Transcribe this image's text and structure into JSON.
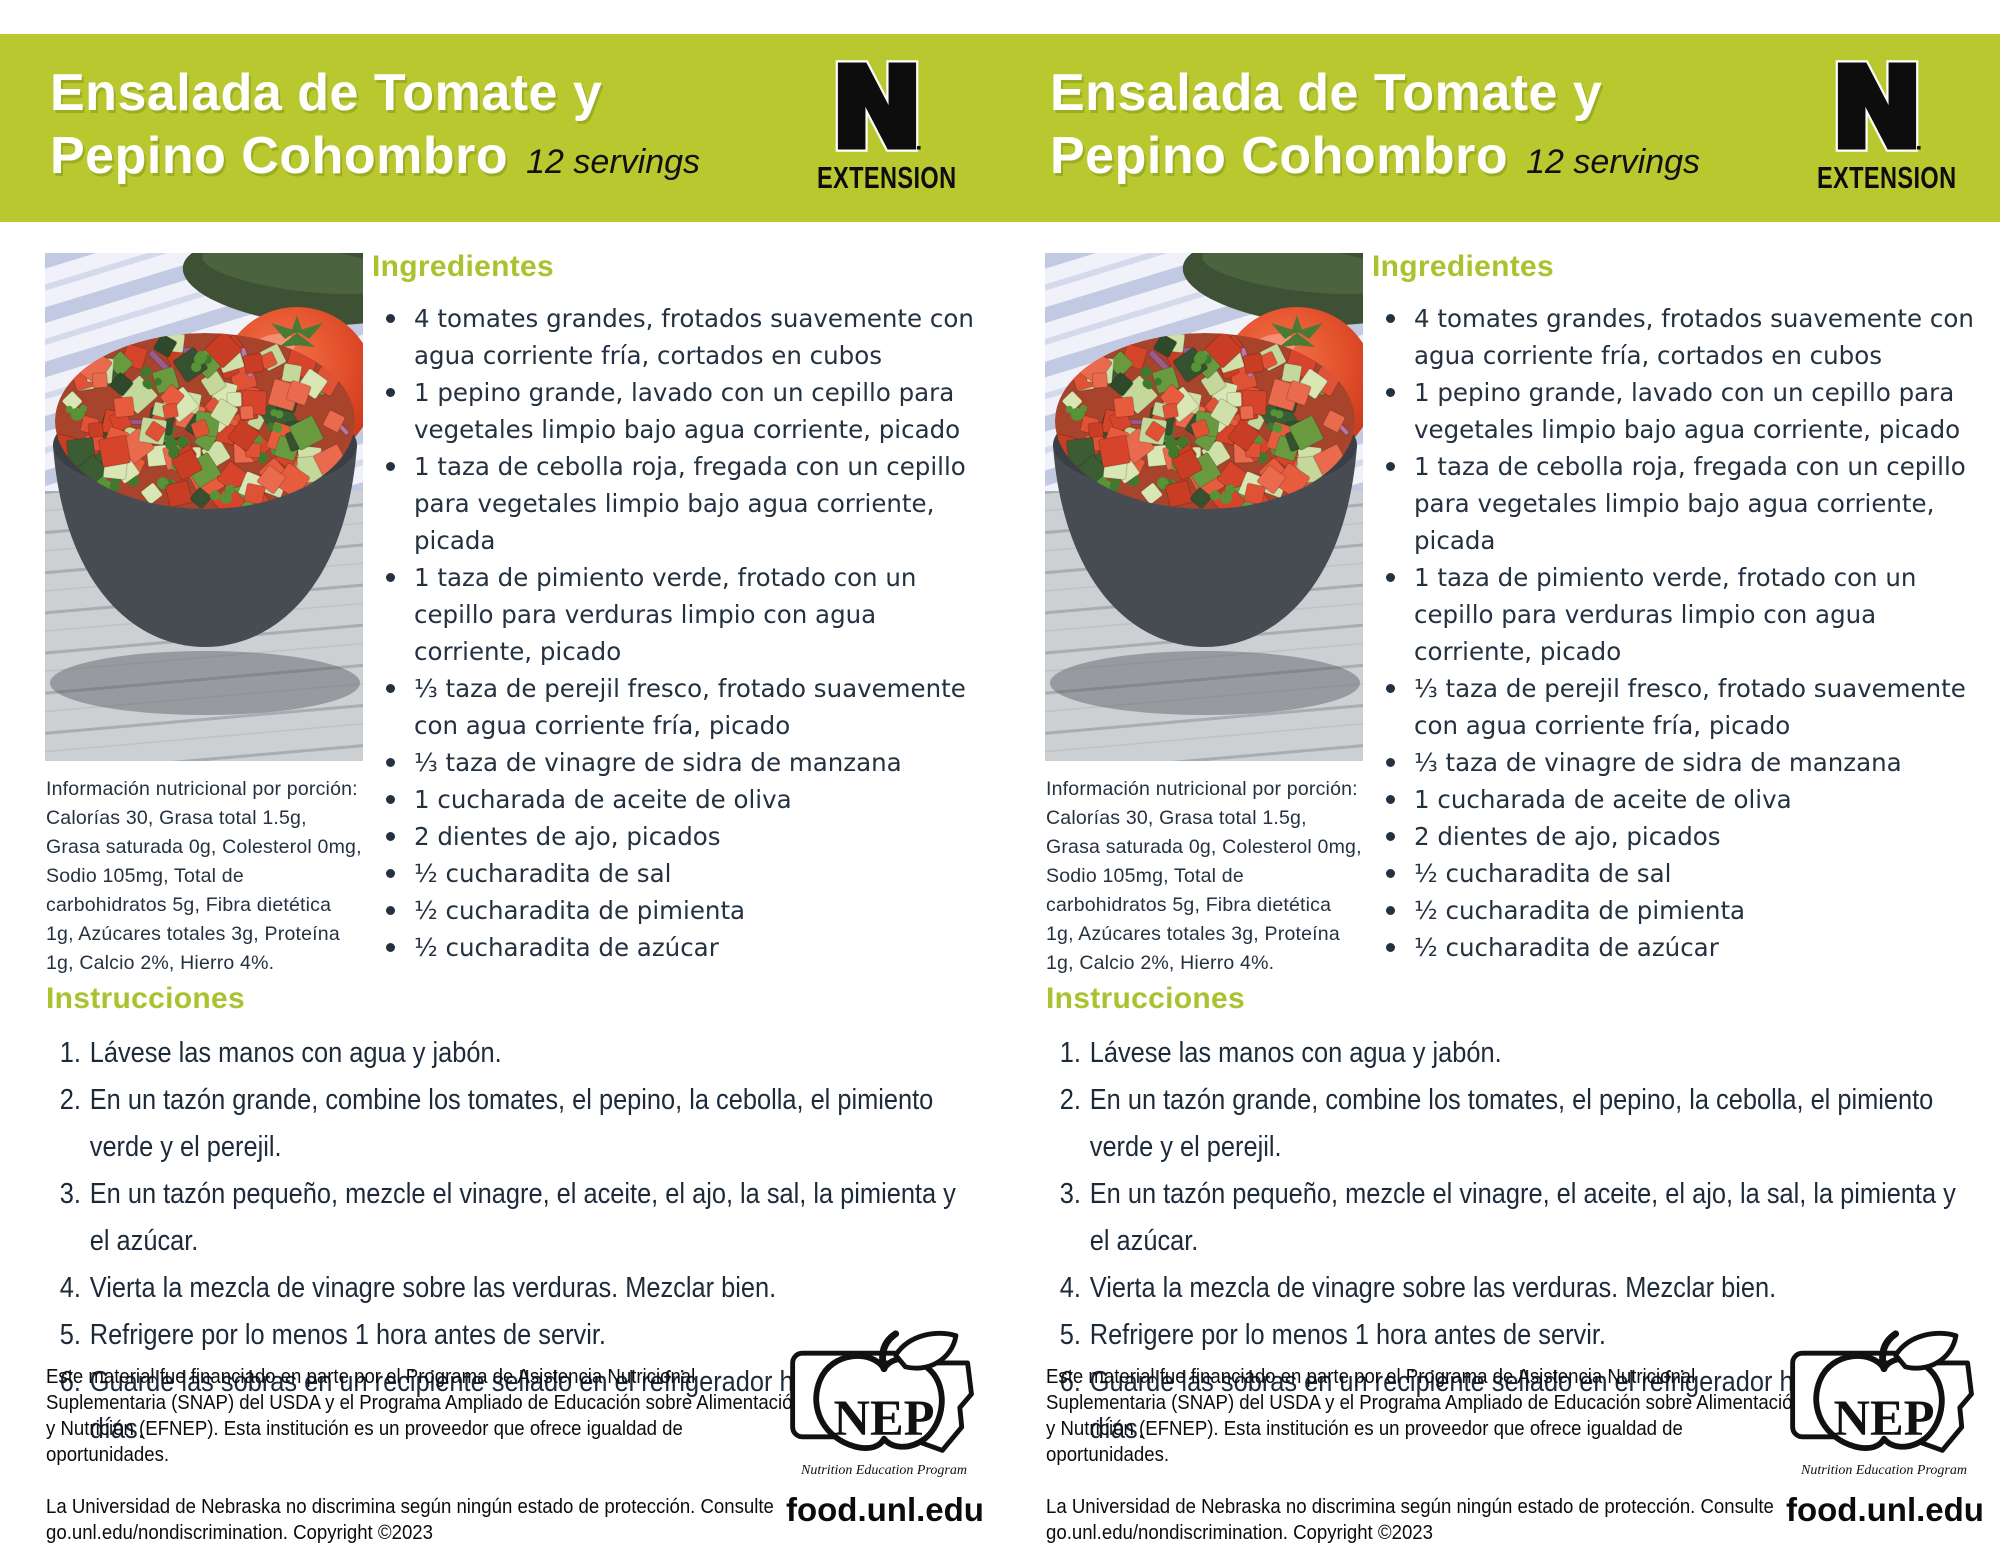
{
  "colors": {
    "band_green": "#b9c82f",
    "heading_green": "#a9c32e",
    "body_text": "#243140"
  },
  "card": {
    "title_line1": "Ensalada de Tomate y",
    "title_line2": "Pepino Cohombro",
    "servings": "12 servings",
    "logo": {
      "extension": "EXTENSION"
    },
    "photo_alt": "tomato-cucumber-salad-photo",
    "ingredients_heading": "Ingredientes",
    "ingredients": [
      "4 tomates grandes, frotados suavemente con agua corriente fría, cortados en cubos",
      "1 pepino grande, lavado con un cepillo para vegetales limpio bajo agua corriente, picado",
      "1 taza de cebolla roja, fregada con un cepillo para vegetales limpio bajo agua corriente, picada",
      "1 taza de pimiento verde, frotado con un cepillo para verduras limpio con agua corriente, picado",
      "⅓ taza de perejil fresco, frotado suavemente con agua corriente fría, picado",
      "⅓ taza de vinagre de sidra de manzana",
      "1 cucharada de aceite de oliva",
      "2 dientes de ajo, picados",
      "½ cucharadita de sal",
      "½ cucharadita de pimienta",
      "½ cucharadita de azúcar"
    ],
    "nutrition": "Información nutricional por porción: Calorías 30, Grasa total 1.5g, Grasa saturada 0g, Colesterol 0mg, Sodio 105mg, Total de carbohidratos 5g, Fibra dietética 1g, Azúcares totales 3g, Proteína 1g, Calcio 2%, Hierro 4%.",
    "instructions_heading": "Instrucciones",
    "instructions": [
      "Lávese las manos con agua y jabón.",
      "En un tazón grande, combine los tomates, el pepino, la cebolla, el pimiento verde y el perejil.",
      "En un tazón pequeño, mezcle el vinagre, el aceite, el ajo, la sal, la pimienta y el azúcar.",
      "Vierta la mezcla de vinagre sobre las verduras. Mezclar bien.",
      "Refrigere por lo menos 1 hora antes de servir.",
      "Guarde las sobras en un recipiente sellado en el refrigerador hasta por cuatro días."
    ],
    "footer_para1": "Este material fue financiado en parte por el Programa de Asistencia Nutricional Suplementaria (SNAP) del USDA y el Programa Ampliado de Educación sobre Alimentación y Nutrición (EFNEP). Esta institución es un proveedor que ofrece igualdad de oportunidades.",
    "footer_para2": "La Universidad de Nebraska no discrimina según ningún estado de protección. Consulte go.unl.edu/nondiscrimination. Copyright ©2023",
    "nep": {
      "acronym": "NEP",
      "caption": "Nutrition Education Program"
    },
    "website": "food.unl.edu"
  }
}
